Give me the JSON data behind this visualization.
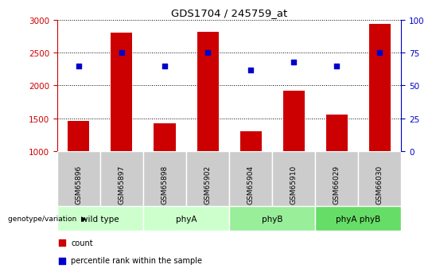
{
  "title": "GDS1704 / 245759_at",
  "samples": [
    "GSM65896",
    "GSM65897",
    "GSM65898",
    "GSM65902",
    "GSM65904",
    "GSM65910",
    "GSM66029",
    "GSM66030"
  ],
  "counts": [
    1460,
    2800,
    1420,
    2810,
    1310,
    1920,
    1560,
    2940
  ],
  "percentiles": [
    65,
    75,
    65,
    75,
    62,
    68,
    65,
    75
  ],
  "ylim_left": [
    1000,
    3000
  ],
  "ylim_right": [
    0,
    100
  ],
  "yticks_left": [
    1000,
    1500,
    2000,
    2500,
    3000
  ],
  "yticks_right": [
    0,
    25,
    50,
    75,
    100
  ],
  "bar_color": "#cc0000",
  "dot_color": "#0000cc",
  "sample_box_color": "#cccccc",
  "group_defs": [
    {
      "label": "wild type",
      "start": 0,
      "end": 1,
      "color": "#ccffcc"
    },
    {
      "label": "phyA",
      "start": 2,
      "end": 3,
      "color": "#ccffcc"
    },
    {
      "label": "phyB",
      "start": 4,
      "end": 5,
      "color": "#99ee99"
    },
    {
      "label": "phyA phyB",
      "start": 6,
      "end": 7,
      "color": "#66dd66"
    }
  ],
  "legend_count_label": "count",
  "legend_pct_label": "percentile rank within the sample",
  "genotype_label": "genotype/variation"
}
